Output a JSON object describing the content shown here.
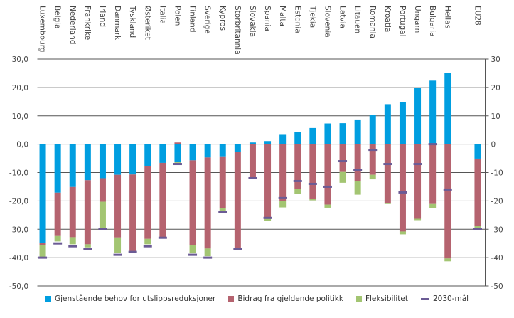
{
  "chart_data": {
    "type": "bar",
    "stacked": true,
    "title": "",
    "xlabel": "",
    "ylabel": "",
    "ylim": [
      -50,
      30
    ],
    "left_ticks": [
      "30,0",
      "20,0",
      "10,0",
      "0,0",
      "-10,0",
      "-20,0",
      "-30,0",
      "-40,0",
      "-50,0"
    ],
    "right_ticks": [
      "30",
      "20",
      "10",
      "0",
      "-10",
      "-20",
      "-30",
      "-40",
      "-50"
    ],
    "tick_values": [
      30,
      20,
      10,
      0,
      -10,
      -20,
      -30,
      -40,
      -50
    ],
    "grid": true,
    "legend_position": "bottom",
    "categories": [
      "Luxembourg",
      "Belgia",
      "Nederland",
      "Frankrike",
      "Irland",
      "Danmark",
      "Tyskland",
      "Østeriket",
      "Italia",
      "Polen",
      "Finland",
      "Sverige",
      "Kypros",
      "Storbritannia",
      "Slovakia",
      "Spania",
      "Malta",
      "Estonia",
      "Tjekia",
      "Slovenia",
      "Latvia",
      "Litauen",
      "Romania",
      "Kroatia",
      "Portugal",
      "Ungarn",
      "Bulgaria",
      "Hellas",
      "EU28"
    ],
    "series": [
      {
        "name": "Gjenstående behov for utslippsreduksjoner",
        "color": "#009ee0",
        "type": "bar",
        "values": [
          -34.8,
          -17.1,
          -15.1,
          -12.7,
          -12.0,
          -10.8,
          -10.7,
          -7.7,
          -6.6,
          -6.4,
          -5.7,
          -4.7,
          -4.3,
          -2.7,
          0.6,
          1.1,
          3.3,
          4.4,
          5.7,
          7.3,
          7.4,
          8.7,
          10.3,
          14.1,
          14.7,
          19.8,
          22.4,
          25.2,
          -5.1
        ]
      },
      {
        "name": "Bidrag fra gjeldende politikk",
        "color": "#b5636f",
        "type": "bar",
        "values": [
          -0.9,
          -15.3,
          -17.7,
          -22.6,
          -8.3,
          -22.1,
          -27.0,
          -25.7,
          -26.1,
          0.6,
          -29.9,
          -32.1,
          -18.2,
          -34.0,
          -11.8,
          -26.0,
          -20.0,
          -15.7,
          -19.4,
          -21.3,
          -9.8,
          -12.9,
          -10.8,
          -20.8,
          -30.8,
          -26.3,
          -21.1,
          -40.3,
          -23.7
        ]
      },
      {
        "name": "Fleksibilitet",
        "color": "#a3c572",
        "type": "bar",
        "values": [
          -4.2,
          -1.9,
          -2.5,
          -1.1,
          -9.5,
          -5.4,
          0,
          -1.9,
          0,
          -0.8,
          -2.9,
          -2.7,
          -1.0,
          0,
          -0.5,
          -1.1,
          -2.3,
          -1.8,
          -0.4,
          -1.1,
          -3.8,
          -4.9,
          -1.6,
          -0.3,
          -1.0,
          -0.5,
          -1.4,
          -1.0,
          -0.9
        ]
      },
      {
        "name": "2030-mål",
        "color": "#6b5b95",
        "type": "marker",
        "values": [
          -40,
          -35,
          -36,
          -37,
          -30,
          -39,
          -38,
          -36,
          -33,
          -7,
          -39,
          -40,
          -24,
          -37,
          -12,
          -26,
          -19,
          -13,
          -14,
          -15,
          -6,
          -9,
          -2,
          -7,
          -17,
          -7,
          0,
          -16,
          -30
        ]
      }
    ]
  }
}
